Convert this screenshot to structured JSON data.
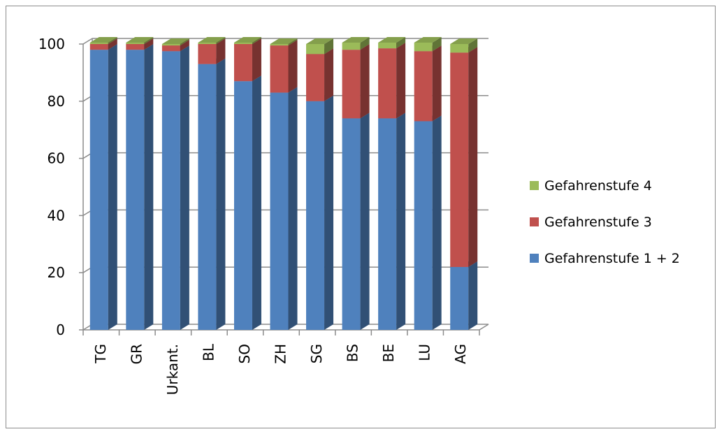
{
  "chart_data": {
    "type": "bar",
    "stacked": true,
    "three_d": true,
    "categories": [
      "TG",
      "GR",
      "Urkant.",
      "BL",
      "SO",
      "ZH",
      "SG",
      "BS",
      "BE",
      "LU",
      "AG"
    ],
    "series": [
      {
        "name": "Gefahrenstufe 1 + 2",
        "color": "#4f81bd",
        "values": [
          98,
          98,
          97.5,
          93,
          87,
          83,
          80,
          74,
          74,
          73,
          22
        ]
      },
      {
        "name": "Gefahrenstufe 3",
        "color": "#c0504d",
        "values": [
          2,
          2,
          2,
          7,
          13,
          16.5,
          16.5,
          24,
          24.5,
          24.5,
          75
        ]
      },
      {
        "name": "Gefahrenstufe 4",
        "color": "#9bbb59",
        "values": [
          0.5,
          0.5,
          0.5,
          0.5,
          0.5,
          0.5,
          3.5,
          2.5,
          2,
          3,
          3
        ]
      }
    ],
    "ylim": [
      0,
      100
    ],
    "yticks": [
      0,
      20,
      40,
      60,
      80,
      100
    ],
    "grid": true,
    "legend_position": "right",
    "legend_order": [
      "Gefahrenstufe 4",
      "Gefahrenstufe 3",
      "Gefahrenstufe 1 + 2"
    ]
  }
}
